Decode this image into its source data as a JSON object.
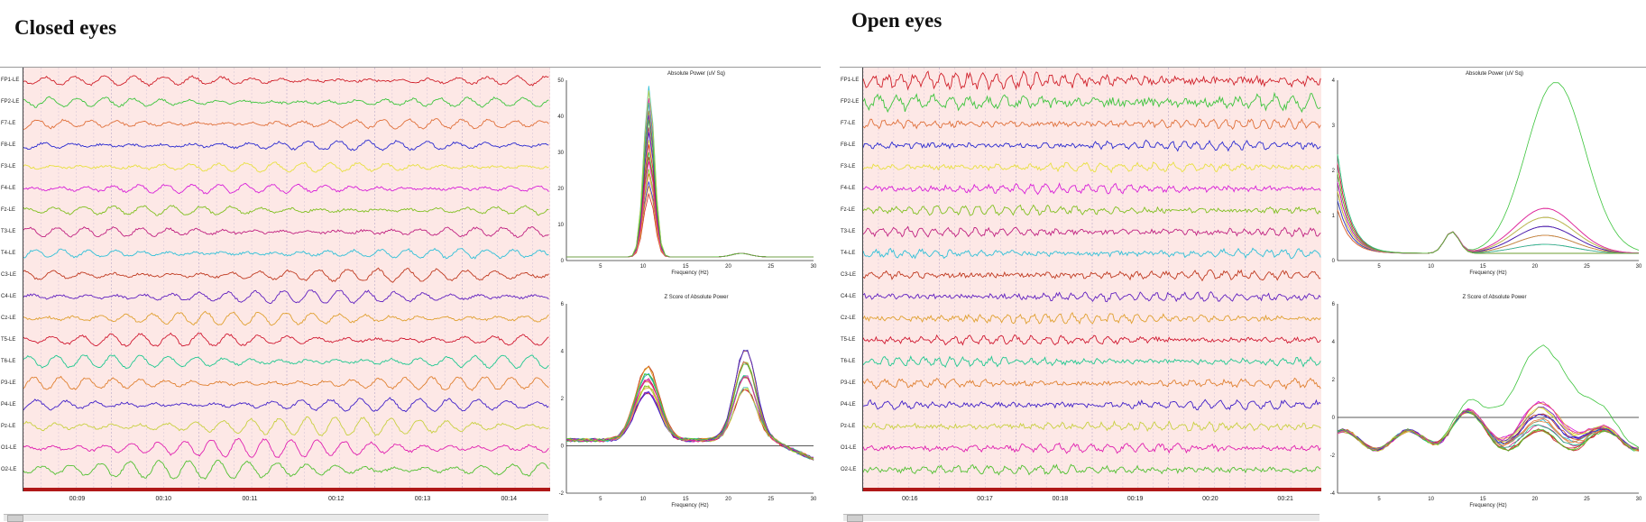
{
  "panels": [
    {
      "key": "closed",
      "title": "Closed eyes",
      "time_ticks": [
        "00:09",
        "00:10",
        "00:11",
        "00:12",
        "00:13",
        "00:14"
      ],
      "spectra": [
        {
          "title": "Absolute Power (uV Sq)",
          "xlabel": "Frequency (Hz)",
          "x_ticks": [
            "5",
            "10",
            "15",
            "20",
            "25",
            "30"
          ],
          "y_ticks": [
            "0",
            "10",
            "20",
            "30",
            "40",
            "50"
          ]
        },
        {
          "title": "Z Score of Absolute Power",
          "xlabel": "Frequency (Hz)",
          "x_ticks": [
            "5",
            "10",
            "15",
            "20",
            "25",
            "30"
          ],
          "y_ticks": [
            "-2",
            "0",
            "2",
            "4",
            "6"
          ]
        }
      ]
    },
    {
      "key": "open",
      "title": "Open eyes",
      "time_ticks": [
        "00:16",
        "00:17",
        "00:18",
        "00:19",
        "00:20",
        "00:21"
      ],
      "spectra": [
        {
          "title": "Absolute Power (uV Sq)",
          "xlabel": "Frequency (Hz)",
          "x_ticks": [
            "5",
            "10",
            "15",
            "20",
            "25",
            "30"
          ],
          "y_ticks": [
            "0",
            "1",
            "2",
            "3",
            "4"
          ]
        },
        {
          "title": "Z Score of Absolute Power",
          "xlabel": "Frequency (Hz)",
          "x_ticks": [
            "5",
            "10",
            "15",
            "20",
            "25",
            "30"
          ],
          "y_ticks": [
            "-4",
            "-2",
            "0",
            "2",
            "4",
            "6"
          ]
        }
      ]
    }
  ],
  "channels": [
    {
      "label": "FP1-LE",
      "color": "#d0202a"
    },
    {
      "label": "FP2-LE",
      "color": "#3cc43c"
    },
    {
      "label": "F7-LE",
      "color": "#e0703a"
    },
    {
      "label": "F8-LE",
      "color": "#2a2ad0"
    },
    {
      "label": "F3-LE",
      "color": "#e8e040"
    },
    {
      "label": "F4-LE",
      "color": "#d820d8"
    },
    {
      "label": "Fz-LE",
      "color": "#80c020"
    },
    {
      "label": "T3-LE",
      "color": "#c02080"
    },
    {
      "label": "T4-LE",
      "color": "#30c0d8"
    },
    {
      "label": "C3-LE",
      "color": "#c03a20"
    },
    {
      "label": "C4-LE",
      "color": "#6020c0"
    },
    {
      "label": "Cz-LE",
      "color": "#e0a030"
    },
    {
      "label": "T5-LE",
      "color": "#d01830"
    },
    {
      "label": "T6-LE",
      "color": "#20c890"
    },
    {
      "label": "P3-LE",
      "color": "#e08030"
    },
    {
      "label": "P4-LE",
      "color": "#4020c8"
    },
    {
      "label": "Pz-LE",
      "color": "#c8d040"
    },
    {
      "label": "O1-LE",
      "color": "#e020b0"
    },
    {
      "label": "O2-LE",
      "color": "#50c030"
    }
  ]
}
